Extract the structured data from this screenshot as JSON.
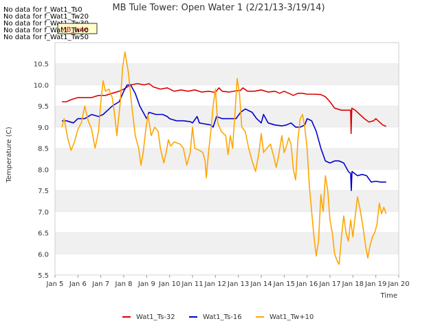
{
  "nodata_messages": [
    "No data for f_Wat1_Ts0",
    "No data for f_Wat1_Tw20",
    "No data for f_Wat1_Tw30",
    "No data for f_Wat1_Tw40",
    "No data for f_Wat1_Tw50"
  ],
  "tooltip_label": "MB_tule",
  "chart_data": {
    "type": "line",
    "title": "MB Tule Tower: Open Water 1 (2/21/13-3/19/14)",
    "xlabel": "Time",
    "ylabel": "Temperature (C)",
    "xlim": [
      5,
      20
    ],
    "ylim": [
      5.5,
      11.0
    ],
    "x_ticks": [
      {
        "value": 5,
        "label": "Jan 5"
      },
      {
        "value": 6,
        "label": "Jan 6"
      },
      {
        "value": 7,
        "label": "Jan 7"
      },
      {
        "value": 8,
        "label": "Jan 8"
      },
      {
        "value": 9,
        "label": "Jan 9"
      },
      {
        "value": 10,
        "label": "Jan 10"
      },
      {
        "value": 11,
        "label": "Jan 11"
      },
      {
        "value": 12,
        "label": "Jan 12"
      },
      {
        "value": 13,
        "label": "Jan 13"
      },
      {
        "value": 14,
        "label": "Jan 14"
      },
      {
        "value": 15,
        "label": "Jan 15"
      },
      {
        "value": 16,
        "label": "Jan 16"
      },
      {
        "value": 17,
        "label": "Jan 17"
      },
      {
        "value": 18,
        "label": "Jan 18"
      },
      {
        "value": 19,
        "label": "Jan 19"
      },
      {
        "value": 20,
        "label": "Jan 20"
      }
    ],
    "y_ticks": [
      {
        "value": 5.5,
        "label": "5.5"
      },
      {
        "value": 6.0,
        "label": "6.0"
      },
      {
        "value": 6.5,
        "label": "6.5"
      },
      {
        "value": 7.0,
        "label": "7.0"
      },
      {
        "value": 7.5,
        "label": "7.5"
      },
      {
        "value": 8.0,
        "label": "8.0"
      },
      {
        "value": 8.5,
        "label": "8.5"
      },
      {
        "value": 9.0,
        "label": "9.0"
      },
      {
        "value": 9.5,
        "label": "9.5"
      },
      {
        "value": 10.0,
        "label": "10.0"
      },
      {
        "value": 10.5,
        "label": "10.5"
      }
    ],
    "grid": "horizontal bands",
    "legend_position": "bottom",
    "series": [
      {
        "name": "Wat1_Ts-32",
        "color": "#dd0000",
        "points": [
          [
            5.3,
            9.6
          ],
          [
            5.5,
            9.6
          ],
          [
            5.7,
            9.65
          ],
          [
            6.0,
            9.7
          ],
          [
            6.3,
            9.7
          ],
          [
            6.6,
            9.7
          ],
          [
            6.9,
            9.75
          ],
          [
            7.2,
            9.75
          ],
          [
            7.5,
            9.8
          ],
          [
            7.8,
            9.85
          ],
          [
            8.0,
            9.9
          ],
          [
            8.3,
            10.0
          ],
          [
            8.6,
            10.03
          ],
          [
            8.9,
            10.0
          ],
          [
            9.1,
            10.03
          ],
          [
            9.3,
            9.95
          ],
          [
            9.6,
            9.9
          ],
          [
            9.9,
            9.93
          ],
          [
            10.2,
            9.85
          ],
          [
            10.5,
            9.88
          ],
          [
            10.8,
            9.85
          ],
          [
            11.1,
            9.88
          ],
          [
            11.4,
            9.83
          ],
          [
            11.7,
            9.85
          ],
          [
            12.0,
            9.82
          ],
          [
            12.15,
            9.93
          ],
          [
            12.3,
            9.85
          ],
          [
            12.6,
            9.83
          ],
          [
            12.9,
            9.86
          ],
          [
            13.1,
            9.87
          ],
          [
            13.2,
            9.93
          ],
          [
            13.4,
            9.85
          ],
          [
            13.7,
            9.85
          ],
          [
            14.0,
            9.88
          ],
          [
            14.3,
            9.83
          ],
          [
            14.6,
            9.85
          ],
          [
            14.8,
            9.8
          ],
          [
            15.0,
            9.85
          ],
          [
            15.2,
            9.8
          ],
          [
            15.4,
            9.75
          ],
          [
            15.6,
            9.8
          ],
          [
            15.8,
            9.8
          ],
          [
            16.0,
            9.78
          ],
          [
            16.3,
            9.78
          ],
          [
            16.6,
            9.77
          ],
          [
            16.8,
            9.72
          ],
          [
            17.0,
            9.6
          ],
          [
            17.2,
            9.45
          ],
          [
            17.5,
            9.4
          ],
          [
            17.8,
            9.4
          ],
          [
            17.9,
            9.4
          ],
          [
            17.92,
            8.85
          ],
          [
            17.95,
            9.45
          ],
          [
            18.1,
            9.4
          ],
          [
            18.3,
            9.3
          ],
          [
            18.5,
            9.2
          ],
          [
            18.7,
            9.12
          ],
          [
            18.9,
            9.15
          ],
          [
            19.0,
            9.2
          ],
          [
            19.1,
            9.15
          ],
          [
            19.3,
            9.05
          ],
          [
            19.45,
            9.02
          ]
        ]
      },
      {
        "name": "Wat1_Ts-16",
        "color": "#0000cc",
        "points": [
          [
            5.3,
            9.15
          ],
          [
            5.5,
            9.15
          ],
          [
            5.8,
            9.1
          ],
          [
            6.0,
            9.2
          ],
          [
            6.3,
            9.2
          ],
          [
            6.6,
            9.3
          ],
          [
            6.9,
            9.25
          ],
          [
            7.1,
            9.3
          ],
          [
            7.3,
            9.4
          ],
          [
            7.5,
            9.5
          ],
          [
            7.8,
            9.6
          ],
          [
            8.0,
            9.85
          ],
          [
            8.15,
            10.0
          ],
          [
            8.3,
            10.0
          ],
          [
            8.5,
            9.8
          ],
          [
            8.7,
            9.5
          ],
          [
            8.9,
            9.3
          ],
          [
            9.0,
            9.2
          ],
          [
            9.1,
            9.35
          ],
          [
            9.4,
            9.3
          ],
          [
            9.7,
            9.3
          ],
          [
            9.9,
            9.25
          ],
          [
            10.0,
            9.2
          ],
          [
            10.3,
            9.15
          ],
          [
            10.6,
            9.15
          ],
          [
            10.9,
            9.13
          ],
          [
            11.0,
            9.1
          ],
          [
            11.2,
            9.25
          ],
          [
            11.3,
            9.1
          ],
          [
            11.5,
            9.08
          ],
          [
            11.8,
            9.05
          ],
          [
            11.9,
            9.0
          ],
          [
            12.05,
            9.25
          ],
          [
            12.3,
            9.2
          ],
          [
            12.6,
            9.2
          ],
          [
            12.9,
            9.2
          ],
          [
            13.1,
            9.35
          ],
          [
            13.3,
            9.43
          ],
          [
            13.6,
            9.35
          ],
          [
            13.8,
            9.2
          ],
          [
            14.0,
            9.1
          ],
          [
            14.1,
            9.3
          ],
          [
            14.3,
            9.1
          ],
          [
            14.6,
            9.05
          ],
          [
            14.9,
            9.03
          ],
          [
            15.1,
            9.05
          ],
          [
            15.3,
            9.1
          ],
          [
            15.5,
            9.0
          ],
          [
            15.7,
            9.0
          ],
          [
            15.9,
            9.05
          ],
          [
            16.0,
            9.2
          ],
          [
            16.2,
            9.15
          ],
          [
            16.4,
            8.9
          ],
          [
            16.6,
            8.5
          ],
          [
            16.8,
            8.2
          ],
          [
            17.0,
            8.15
          ],
          [
            17.2,
            8.2
          ],
          [
            17.4,
            8.2
          ],
          [
            17.6,
            8.15
          ],
          [
            17.8,
            7.95
          ],
          [
            17.9,
            7.9
          ],
          [
            17.93,
            7.5
          ],
          [
            17.96,
            7.95
          ],
          [
            18.2,
            7.85
          ],
          [
            18.4,
            7.88
          ],
          [
            18.6,
            7.85
          ],
          [
            18.8,
            7.7
          ],
          [
            19.0,
            7.72
          ],
          [
            19.2,
            7.7
          ],
          [
            19.45,
            7.7
          ]
        ]
      },
      {
        "name": "Wat1_Tw+10",
        "color": "#ffa500",
        "points": [
          [
            5.3,
            9.0
          ],
          [
            5.4,
            9.2
          ],
          [
            5.55,
            8.75
          ],
          [
            5.7,
            8.45
          ],
          [
            5.85,
            8.65
          ],
          [
            6.0,
            8.95
          ],
          [
            6.15,
            9.1
          ],
          [
            6.3,
            9.5
          ],
          [
            6.45,
            9.15
          ],
          [
            6.6,
            8.95
          ],
          [
            6.75,
            8.5
          ],
          [
            6.9,
            8.9
          ],
          [
            7.0,
            9.6
          ],
          [
            7.1,
            10.1
          ],
          [
            7.2,
            9.85
          ],
          [
            7.35,
            9.9
          ],
          [
            7.5,
            9.7
          ],
          [
            7.6,
            9.3
          ],
          [
            7.7,
            8.8
          ],
          [
            7.85,
            9.6
          ],
          [
            7.95,
            10.4
          ],
          [
            8.05,
            10.78
          ],
          [
            8.2,
            10.3
          ],
          [
            8.35,
            9.5
          ],
          [
            8.5,
            8.8
          ],
          [
            8.65,
            8.5
          ],
          [
            8.75,
            8.1
          ],
          [
            8.85,
            8.4
          ],
          [
            8.95,
            8.9
          ],
          [
            9.05,
            9.3
          ],
          [
            9.2,
            8.8
          ],
          [
            9.35,
            9.0
          ],
          [
            9.5,
            8.9
          ],
          [
            9.6,
            8.5
          ],
          [
            9.75,
            8.15
          ],
          [
            9.85,
            8.4
          ],
          [
            9.95,
            8.7
          ],
          [
            10.05,
            8.55
          ],
          [
            10.2,
            8.65
          ],
          [
            10.45,
            8.6
          ],
          [
            10.6,
            8.5
          ],
          [
            10.75,
            8.1
          ],
          [
            10.9,
            8.4
          ],
          [
            11.0,
            9.0
          ],
          [
            11.1,
            8.5
          ],
          [
            11.3,
            8.45
          ],
          [
            11.45,
            8.4
          ],
          [
            11.55,
            8.2
          ],
          [
            11.6,
            7.8
          ],
          [
            11.7,
            8.4
          ],
          [
            11.8,
            8.9
          ],
          [
            11.9,
            9.5
          ],
          [
            12.0,
            9.9
          ],
          [
            12.1,
            9.1
          ],
          [
            12.25,
            8.9
          ],
          [
            12.45,
            8.8
          ],
          [
            12.55,
            8.35
          ],
          [
            12.65,
            8.8
          ],
          [
            12.75,
            8.5
          ],
          [
            12.85,
            9.3
          ],
          [
            12.95,
            10.15
          ],
          [
            13.05,
            9.8
          ],
          [
            13.15,
            9.0
          ],
          [
            13.3,
            8.9
          ],
          [
            13.45,
            8.5
          ],
          [
            13.6,
            8.2
          ],
          [
            13.75,
            7.95
          ],
          [
            13.9,
            8.4
          ],
          [
            14.0,
            8.85
          ],
          [
            14.1,
            8.4
          ],
          [
            14.25,
            8.5
          ],
          [
            14.4,
            8.6
          ],
          [
            14.55,
            8.3
          ],
          [
            14.65,
            8.05
          ],
          [
            14.75,
            8.3
          ],
          [
            14.9,
            8.8
          ],
          [
            15.0,
            8.4
          ],
          [
            15.1,
            8.55
          ],
          [
            15.2,
            8.75
          ],
          [
            15.3,
            8.6
          ],
          [
            15.4,
            8.0
          ],
          [
            15.5,
            7.75
          ],
          [
            15.6,
            8.7
          ],
          [
            15.7,
            9.2
          ],
          [
            15.8,
            9.3
          ],
          [
            15.9,
            9.0
          ],
          [
            16.0,
            8.5
          ],
          [
            16.1,
            7.6
          ],
          [
            16.2,
            7.0
          ],
          [
            16.3,
            6.4
          ],
          [
            16.4,
            5.95
          ],
          [
            16.5,
            6.3
          ],
          [
            16.6,
            7.4
          ],
          [
            16.7,
            7.0
          ],
          [
            16.8,
            7.85
          ],
          [
            16.9,
            7.5
          ],
          [
            17.0,
            6.8
          ],
          [
            17.1,
            6.5
          ],
          [
            17.2,
            6.0
          ],
          [
            17.3,
            5.85
          ],
          [
            17.4,
            5.75
          ],
          [
            17.5,
            6.4
          ],
          [
            17.6,
            6.9
          ],
          [
            17.7,
            6.5
          ],
          [
            17.8,
            6.3
          ],
          [
            17.9,
            6.8
          ],
          [
            18.0,
            6.4
          ],
          [
            18.1,
            6.9
          ],
          [
            18.2,
            7.35
          ],
          [
            18.3,
            7.1
          ],
          [
            18.45,
            6.6
          ],
          [
            18.55,
            6.2
          ],
          [
            18.65,
            5.9
          ],
          [
            18.75,
            6.2
          ],
          [
            18.85,
            6.4
          ],
          [
            18.95,
            6.5
          ],
          [
            19.05,
            6.7
          ],
          [
            19.15,
            7.2
          ],
          [
            19.25,
            6.95
          ],
          [
            19.35,
            7.1
          ],
          [
            19.45,
            6.95
          ]
        ]
      }
    ]
  }
}
